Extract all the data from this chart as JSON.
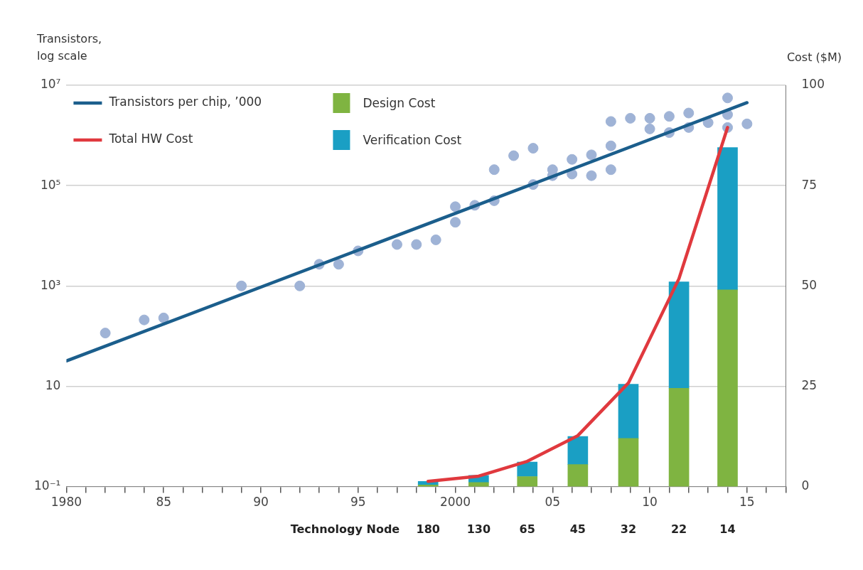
{
  "chart_data": {
    "type": "bar",
    "ylabel": "Transistors, log scale",
    "y2label": "Cost ($M)",
    "xlim": [
      1980,
      2017
    ],
    "xticks": [
      1980,
      {
        "value": 1981,
        "label": null
      },
      {
        "value": 1982,
        "label": null
      },
      {
        "value": 1983,
        "label": null
      },
      {
        "value": 1984,
        "label": null
      },
      {
        "value": 1985,
        "label": "85"
      },
      {
        "value": 1986,
        "label": null
      },
      {
        "value": 1987,
        "label": null
      },
      {
        "value": 1988,
        "label": null
      },
      {
        "value": 1989,
        "label": null
      },
      {
        "value": 1990,
        "label": "90"
      },
      {
        "value": 1991,
        "label": null
      },
      {
        "value": 1992,
        "label": null
      },
      {
        "value": 1993,
        "label": null
      },
      {
        "value": 1994,
        "label": null
      },
      {
        "value": 1995,
        "label": "95"
      },
      {
        "value": 1996,
        "label": null
      },
      {
        "value": 1997,
        "label": null
      },
      {
        "value": 1998,
        "label": null
      },
      {
        "value": 1999,
        "label": null
      },
      2000,
      {
        "value": 2001,
        "label": null
      },
      {
        "value": 2002,
        "label": null
      },
      {
        "value": 2003,
        "label": null
      },
      {
        "value": 2004,
        "label": null
      },
      {
        "value": 2005,
        "label": "05"
      },
      {
        "value": 2006,
        "label": null
      },
      {
        "value": 2007,
        "label": null
      },
      {
        "value": 2008,
        "label": null
      },
      {
        "value": 2009,
        "label": null
      },
      {
        "value": 2010,
        "label": "10"
      },
      {
        "value": 2011,
        "label": null
      },
      {
        "value": 2012,
        "label": null
      },
      {
        "value": 2013,
        "label": null
      },
      {
        "value": 2014,
        "label": null
      },
      {
        "value": 2015,
        "label": "15"
      },
      {
        "value": 2016,
        "label": null
      },
      {
        "value": 2017,
        "label": null
      }
    ],
    "annotations": [
      "Technology Node",
      "180",
      "130",
      "65",
      "45",
      "32",
      "22",
      "14"
    ],
    "log": "y",
    "ylim": [
      0.1,
      10000000
    ],
    "yticks": [
      {
        "value": 0.1,
        "label": "10⁻¹"
      },
      10,
      {
        "value": 1000,
        "label": "10³"
      },
      {
        "value": 100000,
        "label": "10⁵"
      },
      {
        "value": 10000000,
        "label": "10⁷"
      }
    ],
    "y2lim": [
      0,
      100
    ],
    "y2ticks": [
      0,
      25,
      50,
      75,
      100
    ],
    "grid": "y",
    "legend": "top left",
    "stacked": true,
    "series": [
      {
        "name": "Transistors per chip, ’000",
        "type": "line",
        "color": "#1b5e8c",
        "marker": "none",
        "x": [
          1980,
          2015
        ],
        "values": [
          32,
          4500000
        ]
      },
      {
        "name": "Total HW Cost",
        "type": "line",
        "axis": "y2",
        "color": "#e0393e",
        "marker": "none",
        "x": [
          1998.6,
          2001.2,
          2003.7,
          2006.3,
          2008.9,
          2011.5,
          2014
        ],
        "values": [
          1.3,
          2.6,
          6.3,
          12.7,
          25.8,
          51.8,
          89.5
        ]
      },
      {
        "name": "Design Cost",
        "axis": "y2",
        "color": "#7fb441",
        "x": [
          1998.6,
          2001.2,
          2003.7,
          2006.3,
          2008.9,
          2011.5,
          2014
        ],
        "values": [
          0.4,
          1,
          2.5,
          5.5,
          12,
          24.5,
          49
        ]
      },
      {
        "name": "Verification Cost",
        "axis": "y2",
        "color": "#1a9fc4",
        "x": [
          1998.6,
          2001.2,
          2003.7,
          2006.3,
          2008.9,
          2011.5,
          2014
        ],
        "values": [
          0.9,
          1.8,
          3.6,
          7,
          13.5,
          26.5,
          35.5
        ]
      },
      {
        "type": "scatter",
        "color": "#9fb3d6",
        "marker": "circle",
        "x": [
          1982,
          1984,
          1985,
          1989,
          1992,
          1993,
          1994,
          1995,
          1997,
          1998,
          1999,
          2000,
          2000,
          2001,
          2002,
          2002,
          2003,
          2004,
          2004,
          2005,
          2005,
          2006,
          2006,
          2007,
          2007,
          2008,
          2008,
          2008,
          2009,
          2010,
          2010,
          2011,
          2011,
          2012,
          2012,
          2013,
          2014,
          2014,
          2014,
          2015
        ],
        "values": [
          115,
          210,
          230,
          1000,
          1000,
          2700,
          2700,
          5000,
          6700,
          6700,
          8300,
          18600,
          38000,
          40500,
          50000,
          208000,
          395000,
          105000,
          556000,
          158000,
          208000,
          170000,
          333000,
          158000,
          410000,
          208000,
          620000,
          1900000,
          2200000,
          1350000,
          2200000,
          1140000,
          2400000,
          1440000,
          2800000,
          1800000,
          5600000,
          2600000,
          1440000,
          1700000
        ]
      }
    ]
  }
}
